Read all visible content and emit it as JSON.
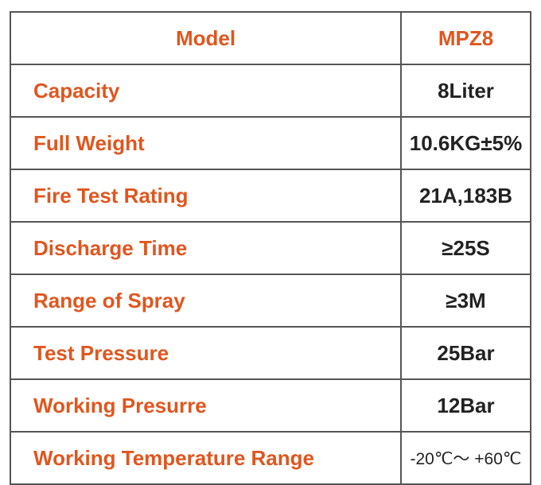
{
  "table": {
    "header": [
      "Model",
      "MPZ8"
    ],
    "rows": [
      [
        "Capacity",
        "8Liter"
      ],
      [
        "Full Weight",
        "10.6KG±5%"
      ],
      [
        "Fire Test Rating",
        "21A,183B"
      ],
      [
        "Discharge Time",
        "≥25S"
      ],
      [
        "Range of Spray",
        "≥3M"
      ],
      [
        "Test Pressure",
        "25Bar"
      ],
      [
        "Working Presurre",
        "12Bar"
      ],
      [
        "Working Temperature Range",
        "-20℃～ +60℃"
      ]
    ]
  }
}
